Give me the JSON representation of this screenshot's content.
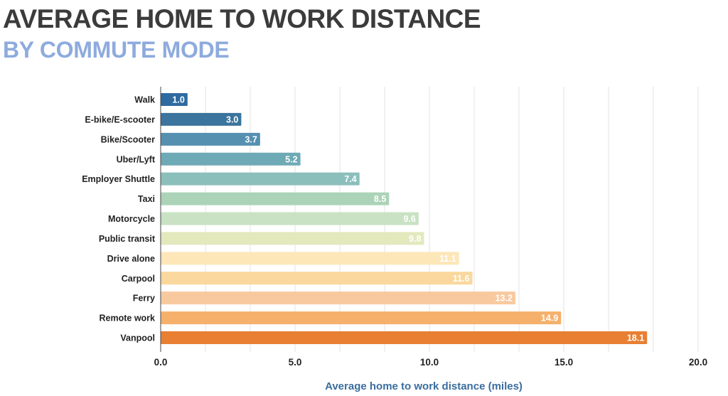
{
  "chart_data": {
    "type": "bar",
    "orientation": "horizontal",
    "title": "AVERAGE HOME TO WORK DISTANCE",
    "subtitle": "BY COMMUTE MODE",
    "xlabel": "Average home to work distance (miles)",
    "ylabel": "",
    "xlim": [
      0,
      20
    ],
    "xticks": [
      "0.0",
      "5.0",
      "10.0",
      "15.0",
      "20.0"
    ],
    "grid": true,
    "categories": [
      "Walk",
      "E-bike/E-scooter",
      "Bike/Scooter",
      "Uber/Lyft",
      "Employer Shuttle",
      "Taxi",
      "Motorcycle",
      "Public transit",
      "Drive alone",
      "Carpool",
      "Ferry",
      "Remote work",
      "Vanpool"
    ],
    "values": [
      1.0,
      3.0,
      3.7,
      5.2,
      7.4,
      8.5,
      9.6,
      9.8,
      11.1,
      11.6,
      13.2,
      14.9,
      18.1
    ],
    "data_labels": [
      "1.0",
      "3.0",
      "3.7",
      "5.2",
      "7.4",
      "8.5",
      "9.6",
      "9.8",
      "11.1",
      "11.6",
      "13.2",
      "14.9",
      "18.1"
    ],
    "colors": [
      "#2f6aa1",
      "#3b749d",
      "#5590b1",
      "#6eaab6",
      "#8bbfbc",
      "#abd3b8",
      "#c8e2c3",
      "#e3e9bd",
      "#fde6b8",
      "#fad89d",
      "#f8c99f",
      "#f5b06b",
      "#e87f33"
    ]
  }
}
